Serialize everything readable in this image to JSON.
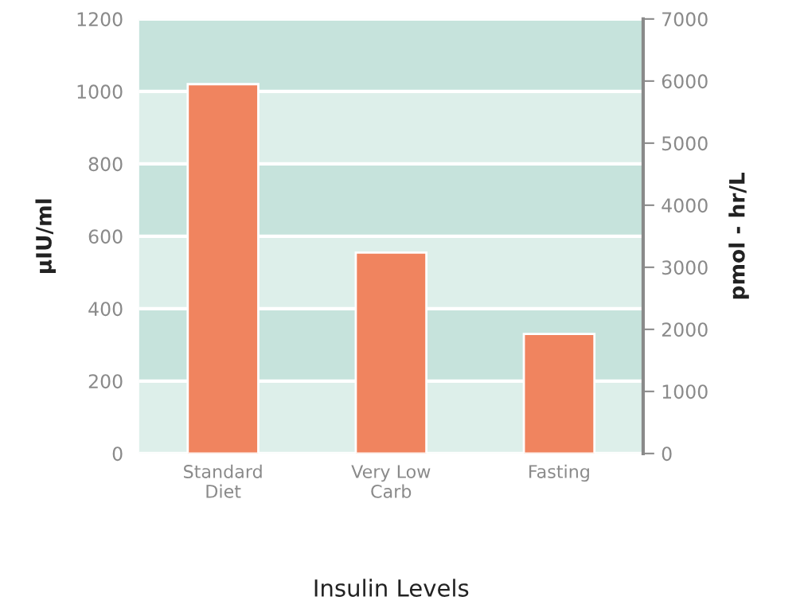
{
  "chart_data": {
    "type": "bar",
    "categories": [
      "Standard\nDiet",
      "Very Low\nCarb",
      "Fasting"
    ],
    "values": [
      1020,
      555,
      330
    ],
    "color": "#f0845f",
    "xlabel": "Insulin Levels",
    "ylabel": "µIU/ml",
    "y2label": "pmol - hr/L",
    "ylim": [
      0,
      1200
    ],
    "yticks": [
      0,
      200,
      400,
      600,
      800,
      1000,
      1200
    ],
    "y2lim": [
      0,
      7000
    ],
    "y2ticks": [
      0,
      1000,
      2000,
      3000,
      4000,
      5000,
      6000,
      7000
    ],
    "grid": "y",
    "bands": [
      {
        "axis": "y",
        "from": 0,
        "to": 200,
        "color": "#ddefea"
      },
      {
        "axis": "y",
        "from": 200,
        "to": 400,
        "color": "#c6e3dc"
      },
      {
        "axis": "y",
        "from": 400,
        "to": 600,
        "color": "#ddefea"
      },
      {
        "axis": "y",
        "from": 600,
        "to": 800,
        "color": "#c6e3dc"
      },
      {
        "axis": "y",
        "from": 800,
        "to": 1000,
        "color": "#ddefea"
      },
      {
        "axis": "y",
        "from": 1000,
        "to": 1200,
        "color": "#c6e3dc"
      }
    ]
  }
}
